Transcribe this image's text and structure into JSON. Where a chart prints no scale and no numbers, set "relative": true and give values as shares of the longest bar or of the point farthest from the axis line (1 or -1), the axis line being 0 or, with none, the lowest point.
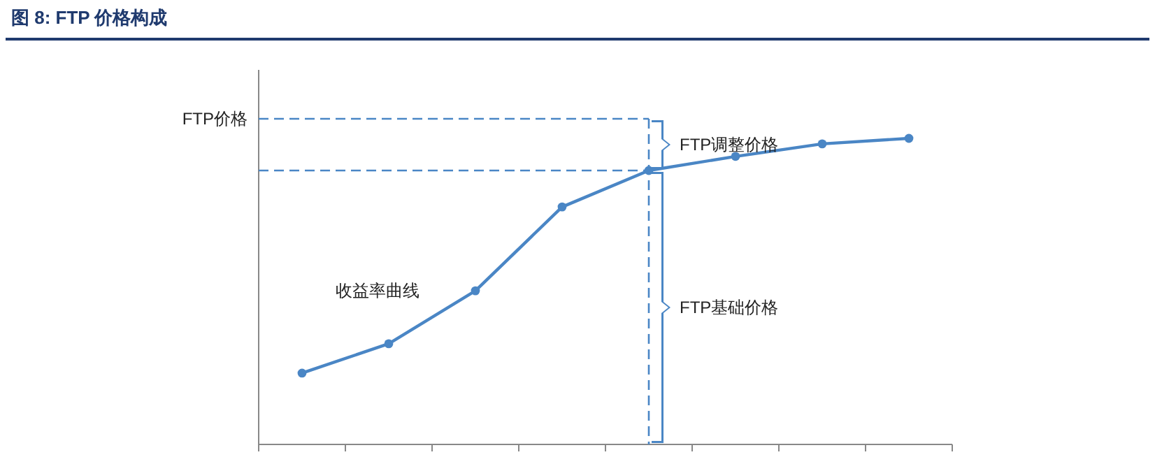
{
  "chart_data": {
    "type": "line",
    "title": "图 8: FTP 价格构成",
    "relative": true,
    "categories": [
      null,
      null,
      null,
      null,
      null,
      null,
      null,
      null
    ],
    "series": [
      {
        "color": "#4a86c5",
        "values": [
          0.233,
          0.329,
          0.502,
          0.776,
          0.895,
          0.941,
          0.982,
          1.0
        ]
      }
    ],
    "marker": "circle",
    "line_style": "solid",
    "ref_lines": [
      {
        "axis": "y",
        "value": 1.064,
        "label": "FTP价格",
        "color": "#4a86c5",
        "line_style": "dashed"
      },
      {
        "axis": "y",
        "value": 0.895,
        "color": "#4a86c5",
        "line_style": "dashed"
      }
    ],
    "annotations": [
      "收益率曲线",
      "FTP调整价格",
      "FTP基础价格"
    ]
  }
}
